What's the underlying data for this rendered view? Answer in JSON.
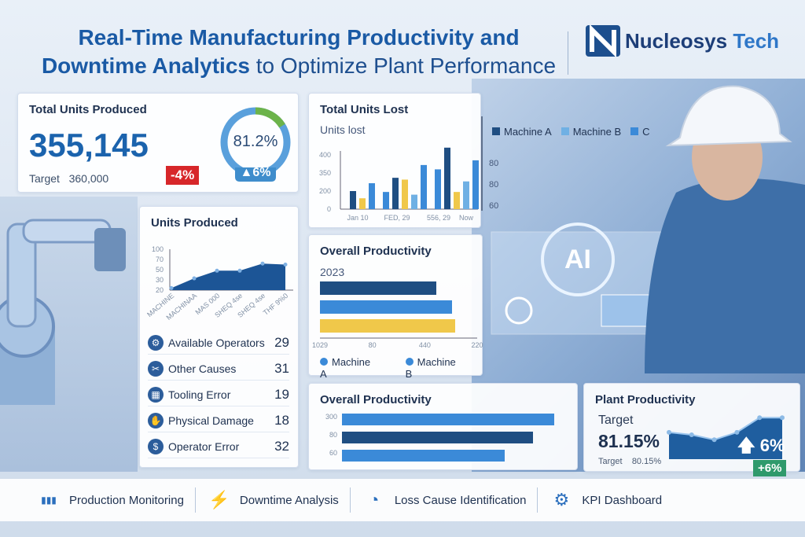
{
  "header": {
    "title_bold_line1": "Real-Time Manufacturing Productivity and",
    "title_bold_line2": "Downtime Analytics",
    "title_light": "to Optimize Plant Performance",
    "logo": {
      "name_part1": "Nucleosys",
      "name_part2": "Tech",
      "icon": "n-logo-icon"
    }
  },
  "colors": {
    "dark_blue": "#1f4e82",
    "mid_blue": "#3b8ad8",
    "light_blue": "#6fb0e4",
    "yellow": "#f0c84a",
    "red": "#d7272a",
    "green": "#2f9a6c",
    "ring_green": "#6cb34a"
  },
  "total_units": {
    "title": "Total Units Produced",
    "value": "355,145",
    "target_label": "Target",
    "target_value": "360,000",
    "delta_badge": "-4%",
    "gauge_value": "81.2%",
    "gauge_fraction": 0.812,
    "gauge_delta": "6%"
  },
  "units_produced": {
    "title": "Units Produced",
    "chart_data": {
      "type": "area",
      "y_ticks": [
        20,
        30,
        50,
        70,
        100
      ],
      "x_labels": [
        "MACHINE",
        "MACHINAA",
        "MAS 000",
        "SHEQ 4se",
        "SHEQ 4se",
        "THF 9%0"
      ],
      "values": [
        22,
        33,
        48,
        48,
        62,
        60
      ]
    }
  },
  "downtime": [
    {
      "label": "Available Operators",
      "value": "29",
      "icon": "gear-icon"
    },
    {
      "label": "Other Causes",
      "value": "31",
      "icon": "tools-icon"
    },
    {
      "label": "Tooling Error",
      "value": "19",
      "icon": "tooling-icon"
    },
    {
      "label": "Physical Damage",
      "value": "18",
      "icon": "damage-icon"
    },
    {
      "label": "Operator Error",
      "value": "32",
      "icon": "dollar-icon"
    }
  ],
  "units_lost": {
    "title": "Total Units Lost",
    "subtitle": "Units lost",
    "legend": [
      "Machine A",
      "Machine B",
      "C"
    ],
    "right_axis": [
      "80",
      "80",
      "60"
    ],
    "chart_data": {
      "type": "bar",
      "y_ticks": [
        0,
        200,
        350,
        400
      ],
      "categories": [
        "Jan 10",
        "FED, 29",
        "556, 29",
        "Now"
      ],
      "groups": [
        [
          {
            "v": 200,
            "c": "dark"
          },
          {
            "v": 120,
            "c": "yellow"
          },
          {
            "v": 265,
            "c": "mid"
          }
        ],
        [
          {
            "v": 190,
            "c": "mid"
          },
          {
            "v": 310,
            "c": "dark"
          },
          {
            "v": 295,
            "c": "yellow"
          },
          {
            "v": 160,
            "c": "light"
          },
          {
            "v": 372,
            "c": "mid"
          }
        ],
        [
          {
            "v": 360,
            "c": "mid"
          },
          {
            "v": 420,
            "c": "dark"
          },
          {
            "v": 190,
            "c": "yellow"
          },
          {
            "v": 280,
            "c": "light"
          },
          {
            "v": 385,
            "c": "mid"
          }
        ]
      ]
    }
  },
  "overall_productivity": {
    "title": "Overall Productivity",
    "year": "2023",
    "legend": [
      "Machine A",
      "Machine B"
    ],
    "chart_data": {
      "type": "bar",
      "orientation": "horizontal",
      "x_ticks": [
        "1029",
        "80",
        "440",
        "220"
      ],
      "values_fraction_of_axis": [
        0.74,
        0.84,
        0.86
      ],
      "colors": [
        "dark",
        "mid",
        "yellow"
      ]
    }
  },
  "overall_productivity_2": {
    "title": "Overall Productivity",
    "chart_data": {
      "type": "bar",
      "orientation": "horizontal",
      "categories": [
        "300",
        "80",
        "60"
      ],
      "values_fraction_of_axis": [
        0.9,
        0.81,
        0.69
      ],
      "colors": [
        "mid",
        "dark",
        "mid"
      ]
    }
  },
  "plant_productivity": {
    "title": "Plant Productivity",
    "target_heading": "Target",
    "value": "81.15%",
    "target_label": "Target",
    "target_value": "80.15%",
    "trend_delta": "6%",
    "badge": "+6%",
    "trend": [
      0.55,
      0.5,
      0.4,
      0.55,
      0.85,
      0.85
    ]
  },
  "bottom_nav": [
    {
      "label": "Production Monitoring",
      "icon": "bar-chart-icon"
    },
    {
      "label": "Downtime Analysis",
      "icon": "lightning-icon"
    },
    {
      "label": "Loss Cause Identification",
      "icon": "pie-chart-icon"
    },
    {
      "label": "KPI Dashboard",
      "icon": "gear-dollar-icon"
    }
  ]
}
